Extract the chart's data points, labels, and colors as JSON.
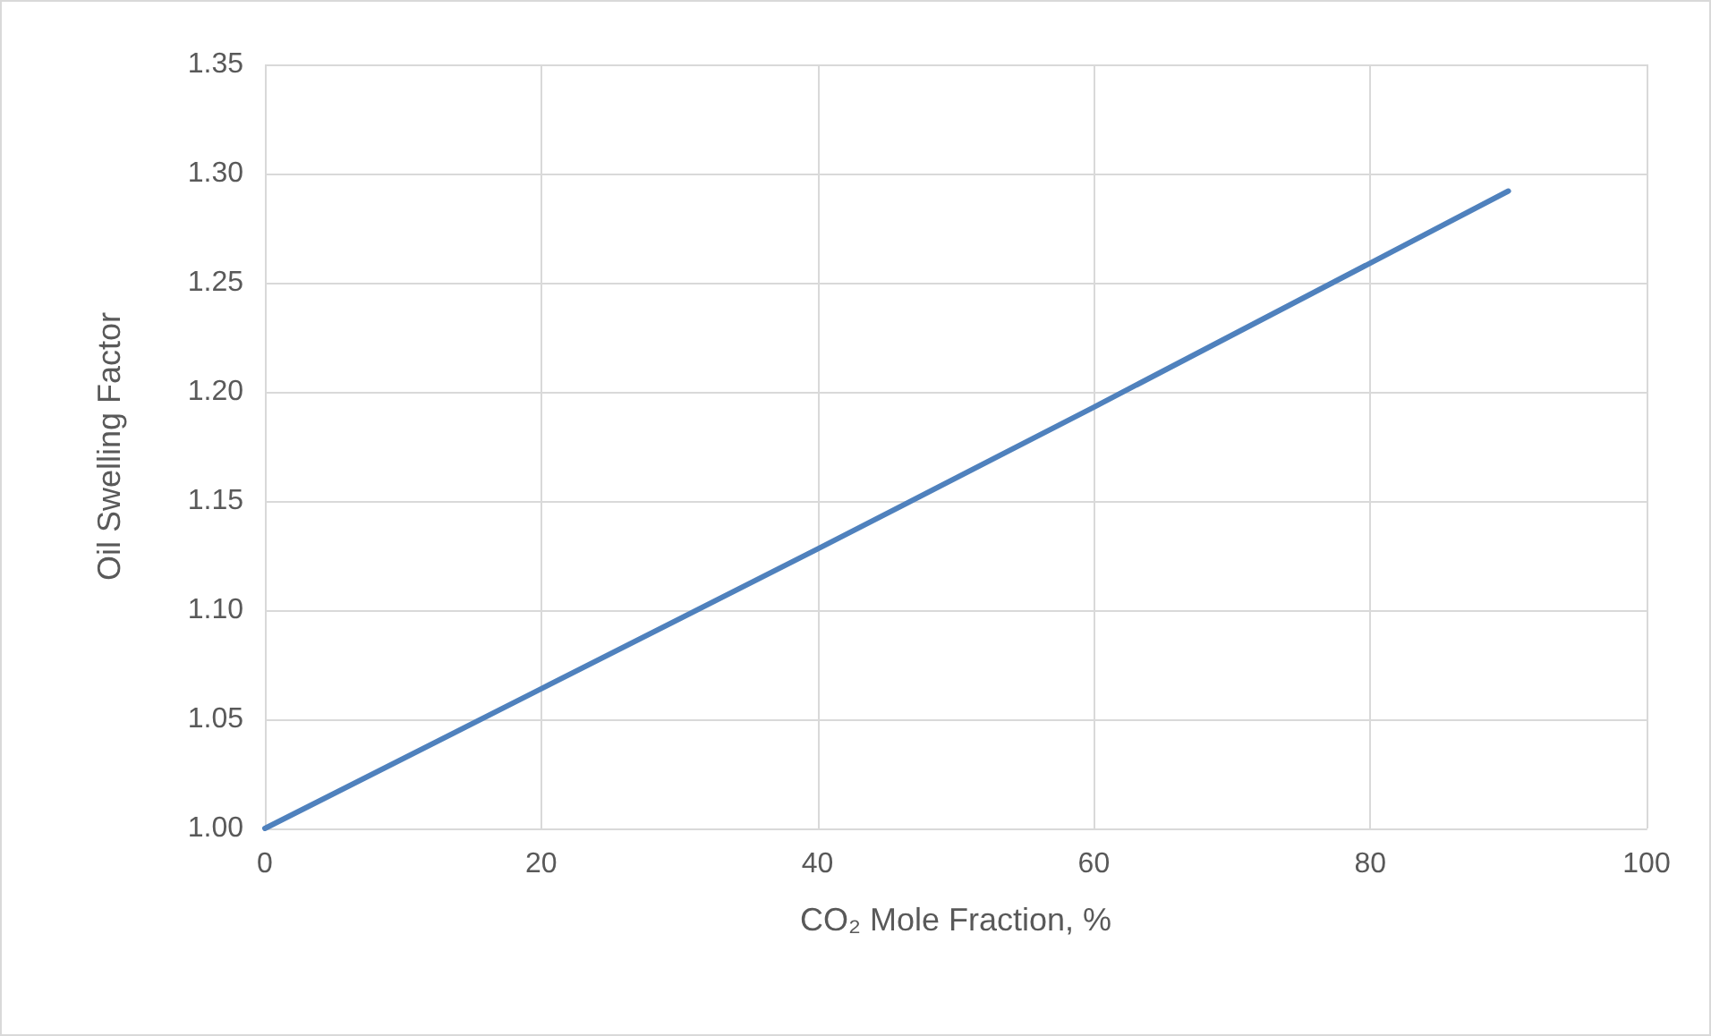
{
  "chart_data": {
    "type": "line",
    "xlabel": "CO₂ Mole Fraction, %",
    "ylabel": "Oil Swelling Factor",
    "x": [
      0,
      20,
      40,
      60,
      80,
      90
    ],
    "series": [
      {
        "color": "#4f81bd",
        "values": [
          1.0,
          1.064,
          1.128,
          1.193,
          1.259,
          1.292
        ]
      }
    ],
    "xlim": [
      0,
      100
    ],
    "xticks": [
      0,
      20,
      40,
      60,
      80,
      100
    ],
    "ylim": [
      1.0,
      1.35
    ],
    "yticks": [
      {
        "value": 1.0,
        "label": "1.00"
      },
      {
        "value": 1.05,
        "label": "1.05"
      },
      {
        "value": 1.1,
        "label": "1.10"
      },
      {
        "value": 1.15,
        "label": "1.15"
      },
      {
        "value": 1.2,
        "label": "1.20"
      },
      {
        "value": 1.25,
        "label": "1.25"
      },
      {
        "value": 1.3,
        "label": "1.30"
      },
      {
        "value": 1.35,
        "label": "1.35"
      }
    ],
    "grid": true,
    "marker": "none",
    "line_style": "solid"
  }
}
